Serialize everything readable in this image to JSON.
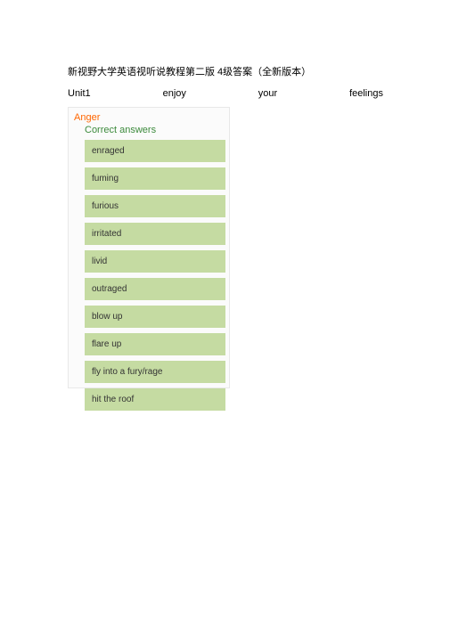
{
  "title": "新视野大学英语视听说教程第二版   4级答案（全新版本）",
  "subtitle": {
    "w1": "Unit1",
    "w2": "enjoy",
    "w3": "your",
    "w4": "feelings"
  },
  "box": {
    "category_label": "Anger",
    "correct_label": "Correct answers",
    "items": [
      "enraged",
      "fuming",
      "furious",
      "irritated",
      "livid",
      "outraged",
      "blow up",
      "flare up",
      "fly into a fury/rage",
      "hit the roof"
    ],
    "colors": {
      "category_color": "#ff6600",
      "correct_color": "#3c8a3c",
      "item_bg": "#c5dba2",
      "item_text": "#333333",
      "box_bg": "#fbfbfb",
      "box_border": "#e8e8e8"
    }
  }
}
